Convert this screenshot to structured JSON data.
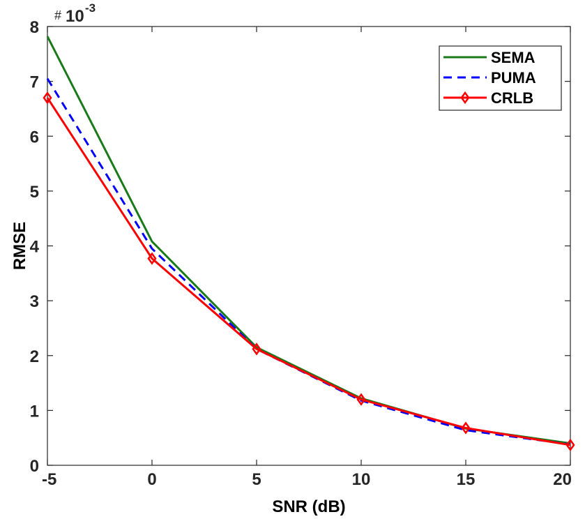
{
  "chart_data": {
    "type": "line",
    "x": [
      -5,
      0,
      5,
      10,
      15,
      20
    ],
    "series": [
      {
        "name": "SEMA",
        "color": "#1a7a1a",
        "style": "solid",
        "marker": "none",
        "values": [
          7.82,
          4.08,
          2.15,
          1.22,
          0.67,
          0.4
        ]
      },
      {
        "name": "PUMA",
        "color": "#0000ff",
        "style": "dashed",
        "marker": "none",
        "values": [
          7.05,
          3.95,
          2.12,
          1.18,
          0.64,
          0.38
        ]
      },
      {
        "name": "CRLB",
        "color": "#ff0000",
        "style": "solid",
        "marker": "diamond",
        "values": [
          6.7,
          3.77,
          2.12,
          1.2,
          0.68,
          0.37
        ]
      }
    ],
    "xlabel": "SNR (dB)",
    "ylabel": "RMSE",
    "xlim": [
      -5,
      20
    ],
    "ylim": [
      0,
      8
    ],
    "xticks": [
      "-5",
      "0",
      "5",
      "10",
      "15",
      "20"
    ],
    "yticks": [
      "0",
      "1",
      "2",
      "3",
      "4",
      "5",
      "6",
      "7",
      "8"
    ],
    "y_multiplier": {
      "hash": "#",
      "base": "10",
      "exponent": "-3"
    },
    "grid": false,
    "legend_position": "top-right"
  }
}
